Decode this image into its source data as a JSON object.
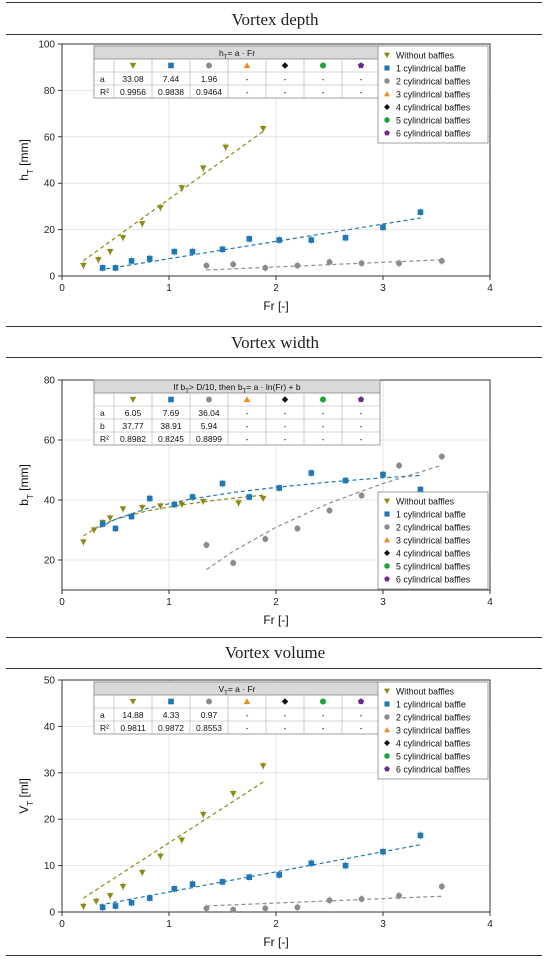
{
  "colors": {
    "without": "#8b8a12",
    "one": "#1f77b4",
    "two": "#8c8c8c",
    "three": "#f28b1e",
    "four": "#111111",
    "five": "#1aa33a",
    "six": "#6a2c91"
  },
  "legend_entries": [
    {
      "label": "Without baffles",
      "marker": "triangle-down",
      "color": "#8b8a12"
    },
    {
      "label": "1 cylindrical baffle",
      "marker": "square",
      "color": "#1f77b4"
    },
    {
      "label": "2 cylindrical baffles",
      "marker": "circle",
      "color": "#8c8c8c"
    },
    {
      "label": "3 cylindrical baffles",
      "marker": "triangle-up",
      "color": "#f28b1e"
    },
    {
      "label": "4 cylindrical baffles",
      "marker": "diamond",
      "color": "#111111"
    },
    {
      "label": "5 cylindrical baffles",
      "marker": "hexagon",
      "color": "#1aa33a"
    },
    {
      "label": "6 cylindrical baffles",
      "marker": "pentagon",
      "color": "#6a2c91"
    }
  ],
  "chart_data": [
    {
      "type": "scatter",
      "title": "Vortex depth",
      "xlabel": "Fr [-]",
      "ylabel": "h",
      "ylabel_sub": "T",
      "ylabel_unit": " [mm]",
      "xlim": [
        0,
        4
      ],
      "ylim": [
        0,
        100
      ],
      "xticks": [
        "0",
        "1",
        "2",
        "3",
        "4"
      ],
      "yticks": [
        "0",
        "20",
        "40",
        "60",
        "80",
        "100"
      ],
      "grid": true,
      "legend": "top-right",
      "table": {
        "formula": "hT = a · Fr",
        "rows": [
          {
            "label": "a",
            "values": [
              "33.08",
              "7.44",
              "1.96",
              "-",
              "-",
              "-",
              "-"
            ]
          },
          {
            "label": "R²",
            "values": [
              "0.9956",
              "0.9838",
              "0.9464",
              "-",
              "-",
              "-",
              "-"
            ]
          }
        ]
      },
      "series": [
        {
          "name": "Without baffles",
          "x": [
            0.2,
            0.34,
            0.45,
            0.57,
            0.75,
            0.92,
            1.12,
            1.32,
            1.53,
            1.88
          ],
          "y": [
            4.5,
            7,
            10.5,
            16.5,
            22.5,
            29.5,
            38,
            46.5,
            55.5,
            63.5
          ]
        },
        {
          "name": "1 cylindrical baffle",
          "x": [
            0.38,
            0.5,
            0.65,
            0.82,
            1.05,
            1.22,
            1.5,
            1.75,
            2.03,
            2.33,
            2.65,
            3.0,
            3.35
          ],
          "y": [
            3.5,
            3.5,
            6.5,
            7.5,
            10.5,
            10.5,
            11.5,
            16,
            15.5,
            15.5,
            16.5,
            21,
            27.5
          ]
        },
        {
          "name": "2 cylindrical baffles",
          "x": [
            1.35,
            1.6,
            1.9,
            2.2,
            2.5,
            2.8,
            3.15,
            3.55
          ],
          "y": [
            4.5,
            5,
            3.5,
            4.5,
            6,
            5.5,
            5.5,
            6.5
          ]
        }
      ],
      "fits": [
        {
          "x": [
            0.2,
            1.9
          ],
          "y": [
            6.6,
            63
          ]
        },
        {
          "x": [
            0.35,
            3.35
          ],
          "y": [
            2.6,
            25
          ]
        },
        {
          "x": [
            1.35,
            3.55
          ],
          "y": [
            2.6,
            7
          ]
        }
      ]
    },
    {
      "type": "scatter",
      "title": "Vortex width",
      "xlabel": "Fr [-]",
      "ylabel": "b",
      "ylabel_sub": "T",
      "ylabel_unit": " [mm]",
      "xlim": [
        0,
        4
      ],
      "ylim": [
        10,
        80
      ],
      "xticks": [
        "0",
        "1",
        "2",
        "3",
        "4"
      ],
      "yticks": [
        "20",
        "40",
        "60",
        "80"
      ],
      "grid": true,
      "legend": "bottom-right",
      "table": {
        "formula": "If bT > D/10, then bT = a · ln(Fr) + b",
        "rows": [
          {
            "label": "a",
            "values": [
              "6.05",
              "7.69",
              "36.04",
              "-",
              "-",
              "-",
              "-"
            ]
          },
          {
            "label": "b",
            "values": [
              "37.77",
              "38.91",
              "5.94",
              "-",
              "-",
              "-",
              "-"
            ]
          },
          {
            "label": "R²",
            "values": [
              "0.8982",
              "0.8245",
              "0.8899",
              "-",
              "-",
              "-",
              "-"
            ]
          }
        ]
      },
      "series": [
        {
          "name": "Without baffles",
          "x": [
            0.2,
            0.3,
            0.38,
            0.45,
            0.57,
            0.75,
            0.92,
            1.12,
            1.32,
            1.65,
            1.88
          ],
          "y": [
            26,
            30,
            32.5,
            34,
            37,
            37.5,
            38,
            38.5,
            39.5,
            39,
            40.5
          ]
        },
        {
          "name": "1 cylindrical baffle",
          "x": [
            0.38,
            0.5,
            0.65,
            0.82,
            1.05,
            1.22,
            1.5,
            1.75,
            2.03,
            2.33,
            2.65,
            3.0,
            3.35
          ],
          "y": [
            32,
            30.5,
            34.5,
            40.5,
            38.5,
            41,
            45.5,
            41,
            44,
            49,
            46.5,
            48.5,
            43.5
          ]
        },
        {
          "name": "2 cylindrical baffles",
          "x": [
            1.35,
            1.6,
            1.9,
            2.2,
            2.5,
            2.8,
            3.15,
            3.55
          ],
          "y": [
            25,
            19,
            27,
            30.5,
            36.5,
            41.5,
            51.5,
            54.5
          ]
        }
      ],
      "fits": [
        {
          "x": [
            0.2,
            0.35,
            0.5,
            0.8,
            1.1,
            1.5,
            1.9
          ],
          "y": [
            28.0,
            31.4,
            33.6,
            36.4,
            38.3,
            40.2,
            41.7
          ]
        },
        {
          "x": [
            0.35,
            0.5,
            0.8,
            1.2,
            1.6,
            2.0,
            2.5,
            3.0,
            3.35
          ],
          "y": [
            30.8,
            33.6,
            37.2,
            40.3,
            42.5,
            44.2,
            46.0,
            47.4,
            48.2
          ]
        },
        {
          "x": [
            1.35,
            1.6,
            2.0,
            2.5,
            3.0,
            3.55
          ],
          "y": [
            16.8,
            22.9,
            30.9,
            39.0,
            45.5,
            51.6
          ]
        }
      ]
    },
    {
      "type": "scatter",
      "title": "Vortex volume",
      "xlabel": "Fr [-]",
      "ylabel": "V",
      "ylabel_sub": "T",
      "ylabel_unit": " [ml]",
      "xlim": [
        0,
        4
      ],
      "ylim": [
        0,
        50
      ],
      "xticks": [
        "0",
        "1",
        "2",
        "3",
        "4"
      ],
      "yticks": [
        "0",
        "10",
        "20",
        "30",
        "40",
        "50"
      ],
      "grid": true,
      "legend": "top-right",
      "table": {
        "formula": "VT = a · Fr",
        "rows": [
          {
            "label": "a",
            "values": [
              "14.88",
              "4.33",
              "0.97",
              "-",
              "-",
              "-",
              "-"
            ]
          },
          {
            "label": "R²",
            "values": [
              "0.9811",
              "0.9872",
              "0.8553",
              "-",
              "-",
              "-",
              "-"
            ]
          }
        ]
      },
      "series": [
        {
          "name": "Without baffles",
          "x": [
            0.2,
            0.32,
            0.45,
            0.57,
            0.75,
            0.92,
            1.12,
            1.32,
            1.6,
            1.88
          ],
          "y": [
            1.2,
            2.3,
            3.5,
            5.5,
            8.5,
            12,
            15.5,
            21,
            25.5,
            31.5
          ]
        },
        {
          "name": "1 cylindrical baffle",
          "x": [
            0.38,
            0.5,
            0.65,
            0.82,
            1.05,
            1.22,
            1.5,
            1.75,
            2.03,
            2.33,
            2.65,
            3.0,
            3.35
          ],
          "y": [
            1,
            1.3,
            2,
            3,
            5,
            6,
            6.5,
            7.5,
            8,
            10.5,
            10,
            13,
            16.5
          ]
        },
        {
          "name": "2 cylindrical baffles",
          "x": [
            1.35,
            1.6,
            1.9,
            2.2,
            2.5,
            2.8,
            3.15,
            3.55
          ],
          "y": [
            0.8,
            0.5,
            0.8,
            1,
            2.5,
            2.8,
            3.5,
            5.5
          ]
        }
      ],
      "fits": [
        {
          "x": [
            0.2,
            1.9
          ],
          "y": [
            3,
            28.3
          ]
        },
        {
          "x": [
            0.35,
            3.35
          ],
          "y": [
            1.5,
            14.5
          ]
        },
        {
          "x": [
            1.35,
            3.55
          ],
          "y": [
            1.3,
            3.4
          ]
        }
      ]
    }
  ]
}
